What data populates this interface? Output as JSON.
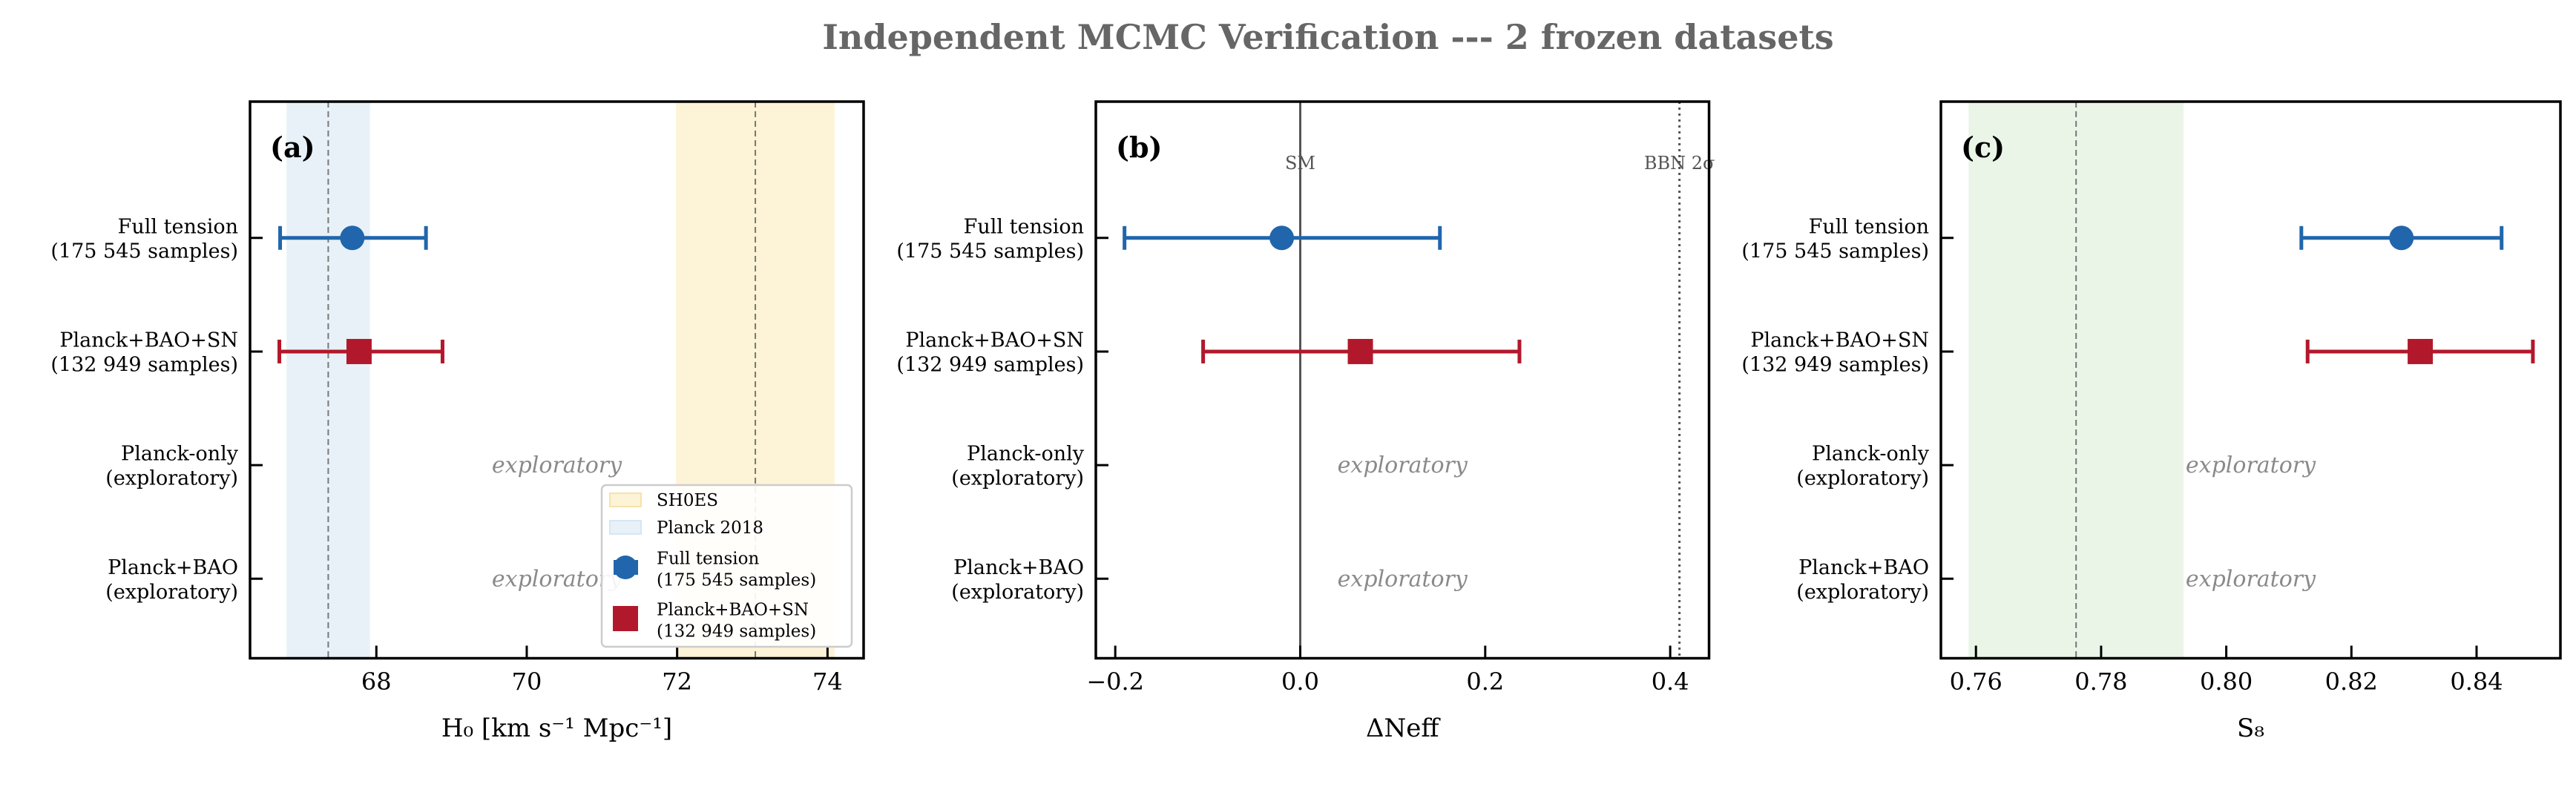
{
  "title": "Independent MCMC Verification --- 2 frozen datasets",
  "colors": {
    "full_tension": "#2166ac",
    "planck_bao_sn": "#b2182b",
    "shoes_band": "#fdf3d6",
    "planck_band": "#e8f1f8",
    "s8_band": "#eaf5e7",
    "reference_line": "#777777"
  },
  "chart_data": [
    {
      "type": "errorbar",
      "panel_label": "(a)",
      "xlabel": "H₀ [km s⁻¹ Mpc⁻¹]",
      "xlim": [
        66.32,
        74.48
      ],
      "xticks": [
        68,
        70,
        72,
        74
      ],
      "xtick_labels": [
        "68",
        "70",
        "72",
        "74"
      ],
      "categories": [
        "Full tension\n(175 545 samples)",
        "Planck+BAO+SN\n(132 949 samples)",
        "Planck-only\n(exploratory)",
        "Planck+BAO\n(exploratory)"
      ],
      "ylim": [
        3.7,
        -1.2
      ],
      "bands": [
        {
          "label": "SH0ES",
          "range": [
            72.0,
            74.08
          ],
          "center": 73.04,
          "color": "#fdf3d6"
        },
        {
          "label": "Planck 2018",
          "range": [
            66.82,
            67.9
          ],
          "center": 67.36,
          "color": "#e8f1f8"
        }
      ],
      "reference_lines": [],
      "series": [
        {
          "name": "Full tension\n(175 545 samples)",
          "marker": "circle",
          "color": "#2166ac",
          "row": 0,
          "value": 67.68,
          "lower": 66.72,
          "upper": 68.66
        },
        {
          "name": "Planck+BAO+SN\n(132 949 samples)",
          "marker": "square",
          "color": "#b2182b",
          "row": 1,
          "value": 67.77,
          "lower": 66.71,
          "upper": 68.88
        }
      ],
      "annotations": [
        {
          "row": 2,
          "text": "exploratory"
        },
        {
          "row": 3,
          "text": "exploratory"
        }
      ],
      "legend": {
        "placement": "lower right",
        "entries": [
          "SH0ES",
          "Planck 2018",
          "Full tension\n(175 545 samples)",
          "Planck+BAO+SN\n(132 949 samples)"
        ]
      }
    },
    {
      "type": "errorbar",
      "panel_label": "(b)",
      "xlabel": "ΔNeff",
      "xlim": [
        -0.221,
        0.442
      ],
      "xticks": [
        -0.2,
        0.0,
        0.2,
        0.4
      ],
      "xtick_labels": [
        "−0.2",
        "0.0",
        "0.2",
        "0.4"
      ],
      "categories": [
        "Full tension\n(175 545 samples)",
        "Planck+BAO+SN\n(132 949 samples)",
        "Planck-only\n(exploratory)",
        "Planck+BAO\n(exploratory)"
      ],
      "ylim": [
        3.7,
        -1.2
      ],
      "bands": [],
      "reference_lines": [
        {
          "label": "SM",
          "x": 0.0,
          "style": "solid",
          "color": "#555555"
        },
        {
          "label": "BBN 2σ",
          "x": 0.41,
          "style": "dotted",
          "color": "#555555"
        }
      ],
      "series": [
        {
          "name": "Full tension",
          "marker": "circle",
          "color": "#2166ac",
          "row": 0,
          "value": -0.02,
          "lower": -0.19,
          "upper": 0.151
        },
        {
          "name": "Planck+BAO+SN",
          "marker": "square",
          "color": "#b2182b",
          "row": 1,
          "value": 0.065,
          "lower": -0.105,
          "upper": 0.237
        }
      ],
      "annotations": [
        {
          "row": 2,
          "text": "exploratory"
        },
        {
          "row": 3,
          "text": "exploratory"
        }
      ]
    },
    {
      "type": "errorbar",
      "panel_label": "(c)",
      "xlabel": "S₈",
      "xlim": [
        0.7544,
        0.8534
      ],
      "xticks": [
        0.76,
        0.78,
        0.8,
        0.82,
        0.84
      ],
      "xtick_labels": [
        "0.76",
        "0.78",
        "0.80",
        "0.82",
        "0.84"
      ],
      "categories": [
        "Full tension\n(175 545 samples)",
        "Planck+BAO+SN\n(132 949 samples)",
        "Planck-only\n(exploratory)",
        "Planck+BAO\n(exploratory)"
      ],
      "ylim": [
        3.7,
        -1.2
      ],
      "bands": [
        {
          "range": [
            0.759,
            0.793
          ],
          "center": 0.776,
          "color": "#eaf5e7"
        }
      ],
      "reference_lines": [],
      "series": [
        {
          "name": "Full tension",
          "marker": "circle",
          "color": "#2166ac",
          "row": 0,
          "value": 0.828,
          "lower": 0.812,
          "upper": 0.844
        },
        {
          "name": "Planck+BAO+SN",
          "marker": "square",
          "color": "#b2182b",
          "row": 1,
          "value": 0.831,
          "lower": 0.813,
          "upper": 0.849
        }
      ],
      "annotations": [
        {
          "row": 2,
          "text": "exploratory"
        },
        {
          "row": 3,
          "text": "exploratory"
        }
      ]
    }
  ]
}
